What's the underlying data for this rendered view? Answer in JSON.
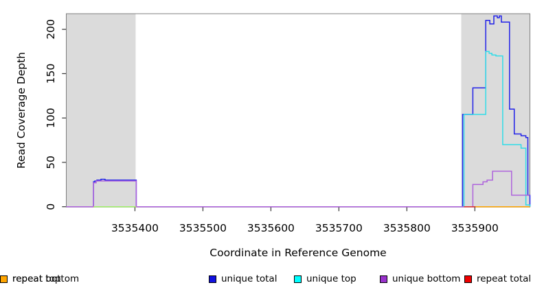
{
  "figure": {
    "x_axis_title": "Coordinate in Reference Genome",
    "y_axis_title": "Read Coverage Depth"
  },
  "chart_data": {
    "type": "line",
    "title": "",
    "xlabel": "Coordinate in Reference Genome",
    "ylabel": "Read Coverage Depth",
    "xlim": [
      3535299,
      3535981
    ],
    "ylim": [
      0,
      217.5
    ],
    "x_ticks": [
      3535400,
      3535500,
      3535600,
      3535700,
      3535800,
      3535900
    ],
    "y_ticks": [
      0,
      50,
      100,
      150,
      200
    ],
    "grid": false,
    "legend_position": "bottom",
    "plot_background": "#ffffff",
    "frame_color": "#7d7d7d",
    "shaded_regions": [
      {
        "x0": 3535299,
        "x1": 3535401,
        "color": "#dbdbdb"
      },
      {
        "x0": 3535880,
        "x1": 3535981,
        "color": "#dbdbdb"
      }
    ],
    "series": [
      {
        "name": "unique total",
        "color": "#2020e8",
        "opacity": 1,
        "steps": [
          [
            3535299,
            0
          ],
          [
            3535339,
            28
          ],
          [
            3535341,
            29
          ],
          [
            3535344,
            30
          ],
          [
            3535350,
            31
          ],
          [
            3535356,
            30
          ],
          [
            3535402,
            0
          ],
          [
            3535882,
            104
          ],
          [
            3535897,
            134
          ],
          [
            3535916,
            210
          ],
          [
            3535922,
            206
          ],
          [
            3535928,
            215
          ],
          [
            3535933,
            213
          ],
          [
            3535936,
            215
          ],
          [
            3535939,
            208
          ],
          [
            3535951,
            110
          ],
          [
            3535958,
            82
          ],
          [
            3535968,
            80
          ],
          [
            3535975,
            78
          ],
          [
            3535978,
            13
          ],
          [
            3535981,
            0
          ]
        ]
      },
      {
        "name": "unique top",
        "color": "#30dde8",
        "opacity": 1,
        "steps": [
          [
            3535299,
            0
          ],
          [
            3535884,
            104
          ],
          [
            3535916,
            175
          ],
          [
            3535921,
            173
          ],
          [
            3535925,
            171
          ],
          [
            3535931,
            170
          ],
          [
            3535941,
            70
          ],
          [
            3535968,
            66
          ],
          [
            3535975,
            2
          ],
          [
            3535981,
            0
          ]
        ]
      },
      {
        "name": "unique bottom",
        "color": "#ae63dc",
        "opacity": 1,
        "steps": [
          [
            3535299,
            0
          ],
          [
            3535339,
            27
          ],
          [
            3535343,
            29
          ],
          [
            3535402,
            0
          ],
          [
            3535897,
            25
          ],
          [
            3535912,
            28
          ],
          [
            3535918,
            30
          ],
          [
            3535926,
            40
          ],
          [
            3535954,
            13
          ],
          [
            3535981,
            13
          ]
        ]
      },
      {
        "name": "repeat total",
        "color": "#e03030",
        "opacity": 1,
        "steps": [
          [
            3535884,
            0
          ],
          [
            3535981,
            0
          ]
        ]
      },
      {
        "name": "repeat top",
        "color": "#ffff00",
        "opacity": 0.55,
        "steps": [
          [
            3535339,
            0
          ],
          [
            3535402,
            0
          ]
        ]
      },
      {
        "name": "repeat bottom",
        "color": "#ffa500",
        "opacity": 1,
        "steps": [
          [
            3535901,
            0
          ],
          [
            3535981,
            0
          ]
        ]
      }
    ]
  },
  "legend": {
    "items": [
      {
        "label": "unique total",
        "color": "#1212e0"
      },
      {
        "label": "unique top",
        "color": "#00ffff"
      },
      {
        "label": "unique bottom",
        "color": "#9932cc"
      },
      {
        "label": "repeat total",
        "color": "#ee0000"
      },
      {
        "label": "repeat top",
        "color": "#ffff00"
      },
      {
        "label": "repeat bottom",
        "color": "#ffa500"
      }
    ]
  }
}
